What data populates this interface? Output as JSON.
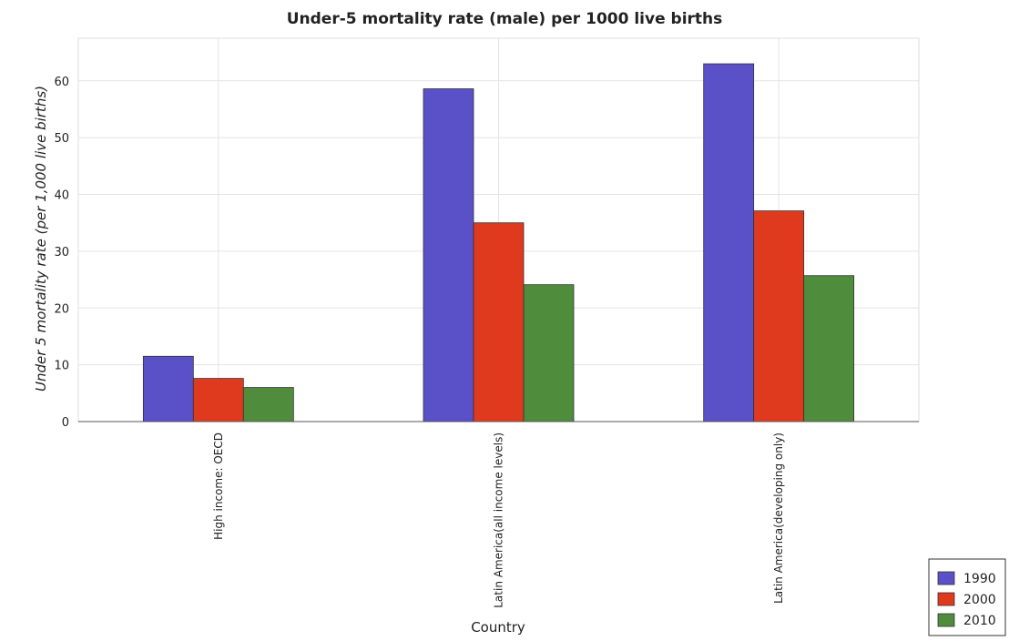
{
  "chart_data": {
    "type": "bar",
    "title": "Under-5 mortality rate (male) per 1000 live births",
    "xlabel": "Country",
    "ylabel": "Under 5 mortality rate (per 1,000 live births)",
    "categories": [
      "High income: OECD",
      "Latin America(all income levels)",
      "Latin America(developing only)"
    ],
    "series": [
      {
        "name": "1990",
        "color": "#5a50c8",
        "values": [
          11.5,
          58.6,
          63.0
        ]
      },
      {
        "name": "2000",
        "color": "#e03a1e",
        "values": [
          7.6,
          35.0,
          37.1
        ]
      },
      {
        "name": "2010",
        "color": "#4f8c3c",
        "values": [
          6.0,
          24.1,
          25.7
        ]
      }
    ],
    "ylim": [
      0,
      67.5
    ],
    "yticks": [
      0,
      10,
      20,
      30,
      40,
      50,
      60
    ],
    "grid": true,
    "legend_position": "bottom-right"
  }
}
